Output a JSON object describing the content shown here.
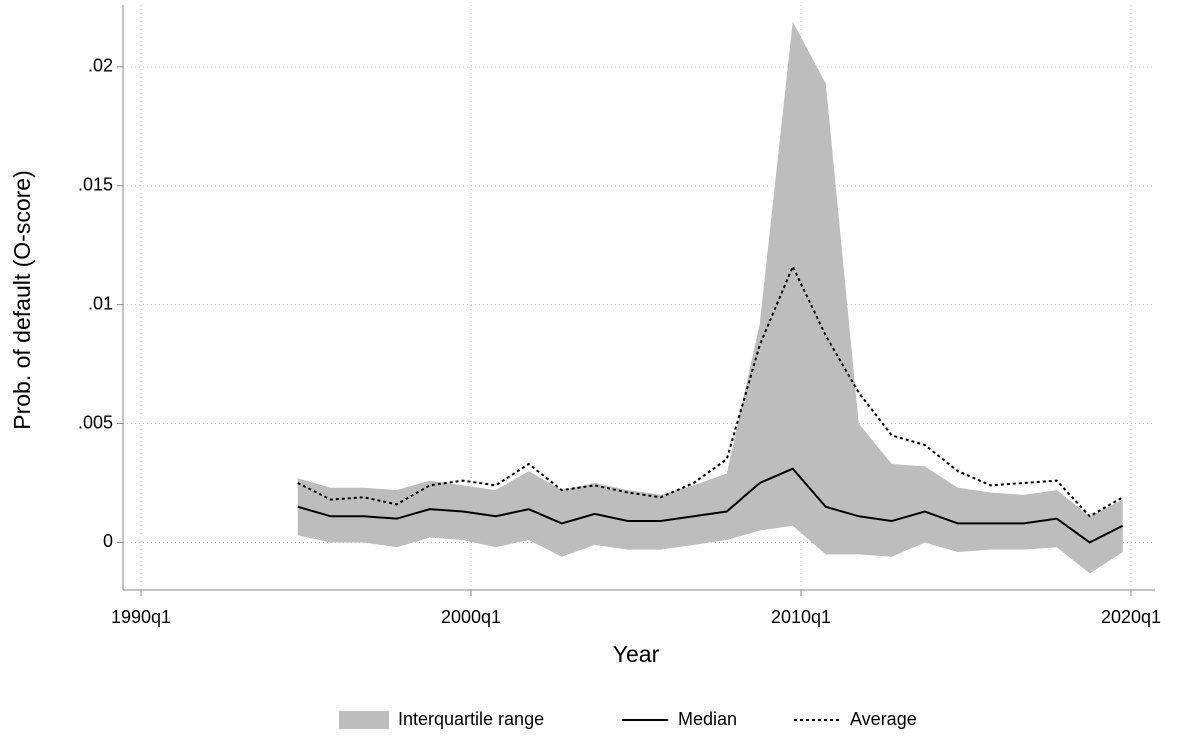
{
  "chart_data": {
    "type": "line",
    "x_label": "Year",
    "y_label": "Prob. of default (O-score)",
    "x": [
      "1994q4",
      "1995q4",
      "1996q4",
      "1997q4",
      "1998q4",
      "1999q4",
      "2000q4",
      "2001q4",
      "2002q4",
      "2003q4",
      "2004q4",
      "2005q4",
      "2006q4",
      "2007q4",
      "2008q4",
      "2009q4",
      "2010q4",
      "2011q4",
      "2012q4",
      "2013q4",
      "2014q4",
      "2015q4",
      "2016q4",
      "2017q4",
      "2018q4",
      "2019q4"
    ],
    "xticks": [
      "1990q1",
      "2000q1",
      "2010q1",
      "2020q1"
    ],
    "ylim": [
      -0.002,
      0.0226
    ],
    "yticks": [
      {
        "value": 0,
        "label": "0"
      },
      {
        "value": 0.005,
        "label": ".005"
      },
      {
        "value": 0.01,
        "label": ".01"
      },
      {
        "value": 0.015,
        "label": ".015"
      },
      {
        "value": 0.02,
        "label": ".02"
      }
    ],
    "grid": true,
    "legend": "bottom",
    "series": [
      {
        "name": "Interquartile range",
        "kind": "band",
        "color": "#bdbdbd",
        "upper": [
          0.0027,
          0.0023,
          0.0023,
          0.0022,
          0.0026,
          0.0024,
          0.0022,
          0.003,
          0.0022,
          0.0025,
          0.0022,
          0.002,
          0.0024,
          0.0029,
          0.0092,
          0.0219,
          0.0193,
          0.005,
          0.0033,
          0.0032,
          0.0023,
          0.0021,
          0.002,
          0.0022,
          0.0011,
          0.0018
        ],
        "lower": [
          0.0003,
          0.0,
          0.0,
          -0.0002,
          0.0002,
          0.0001,
          -0.0002,
          0.0001,
          -0.0006,
          -0.0001,
          -0.0003,
          -0.0003,
          -0.0001,
          0.0001,
          0.0005,
          0.0007,
          -0.0005,
          -0.0005,
          -0.0006,
          0.0,
          -0.0004,
          -0.0003,
          -0.0003,
          -0.0002,
          -0.0013,
          -0.0004
        ]
      },
      {
        "name": "Median",
        "kind": "line",
        "color": "#000000",
        "dash": "solid",
        "values": [
          0.0015,
          0.0011,
          0.0011,
          0.001,
          0.0014,
          0.0013,
          0.0011,
          0.0014,
          0.0008,
          0.0012,
          0.0009,
          0.0009,
          0.0011,
          0.0013,
          0.0025,
          0.0031,
          0.0015,
          0.0011,
          0.0009,
          0.0013,
          0.0008,
          0.0008,
          0.0008,
          0.001,
          0.0,
          0.0007
        ]
      },
      {
        "name": "Average",
        "kind": "line",
        "color": "#000000",
        "dash": "dotted",
        "values": [
          0.0025,
          0.0018,
          0.0019,
          0.0016,
          0.0024,
          0.0026,
          0.0024,
          0.0033,
          0.0022,
          0.0024,
          0.0021,
          0.0019,
          0.0025,
          0.0035,
          0.0083,
          0.0116,
          0.0087,
          0.0063,
          0.0045,
          0.0041,
          0.003,
          0.0024,
          0.0025,
          0.0026,
          0.0011,
          0.0019
        ]
      }
    ]
  }
}
